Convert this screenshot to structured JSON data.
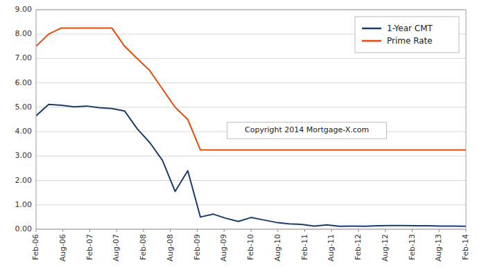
{
  "chart_data": {
    "type": "line",
    "annotations": [
      "Copyright 2014 Mortgage-X.com"
    ],
    "xlim": [
      0,
      16
    ],
    "xticks": [
      {
        "value": 0,
        "label": "Feb-06"
      },
      {
        "value": 1,
        "label": "Aug-06"
      },
      {
        "value": 2,
        "label": "Feb-07"
      },
      {
        "value": 3,
        "label": "Aug-07"
      },
      {
        "value": 4,
        "label": "Feb-08"
      },
      {
        "value": 5,
        "label": "Aug-08"
      },
      {
        "value": 6,
        "label": "Feb-09"
      },
      {
        "value": 7,
        "label": "Aug-09"
      },
      {
        "value": 8,
        "label": "Feb-10"
      },
      {
        "value": 9,
        "label": "Aug-10"
      },
      {
        "value": 10,
        "label": "Feb-11"
      },
      {
        "value": 11,
        "label": "Aug-11"
      },
      {
        "value": 12,
        "label": "Feb-12"
      },
      {
        "value": 13,
        "label": "Aug-12"
      },
      {
        "value": 14,
        "label": "Feb-13"
      },
      {
        "value": 15,
        "label": "Aug-13"
      },
      {
        "value": 16,
        "label": "Feb-14"
      }
    ],
    "ylim": [
      0.0,
      9.0
    ],
    "yticks": [
      {
        "value": 0.0,
        "label": "0.00"
      },
      {
        "value": 1.0,
        "label": "1.00"
      },
      {
        "value": 2.0,
        "label": "2.00"
      },
      {
        "value": 3.0,
        "label": "3.00"
      },
      {
        "value": 4.0,
        "label": "4.00"
      },
      {
        "value": 5.0,
        "label": "5.00"
      },
      {
        "value": 6.0,
        "label": "6.00"
      },
      {
        "value": 7.0,
        "label": "7.00"
      },
      {
        "value": 8.0,
        "label": "8.00"
      },
      {
        "value": 9.0,
        "label": "9.00"
      }
    ],
    "grid": true,
    "legend": "upper right",
    "series": [
      {
        "name": "1-Year CMT",
        "color": "#1a3a6b",
        "values": [
          4.65,
          5.12,
          5.08,
          5.02,
          5.05,
          4.98,
          4.95,
          4.85,
          4.12,
          3.55,
          2.82,
          1.55,
          2.4,
          0.5,
          0.62,
          0.45,
          0.32,
          0.48,
          0.38,
          0.28,
          0.22,
          0.2,
          0.13,
          0.18,
          0.12,
          0.13,
          0.12,
          0.14,
          0.15,
          0.15,
          0.14,
          0.14,
          0.13,
          0.13,
          0.12
        ]
      },
      {
        "name": "Prime Rate",
        "color": "#e84a0a",
        "values": [
          7.5,
          8.0,
          8.25,
          8.25,
          8.25,
          8.25,
          8.25,
          7.5,
          7.0,
          6.5,
          5.75,
          5.0,
          4.5,
          3.25,
          3.25,
          3.25,
          3.25,
          3.25,
          3.25,
          3.25,
          3.25,
          3.25,
          3.25,
          3.25,
          3.25,
          3.25,
          3.25,
          3.25,
          3.25,
          3.25,
          3.25,
          3.25,
          3.25,
          3.25,
          3.25
        ]
      }
    ]
  }
}
